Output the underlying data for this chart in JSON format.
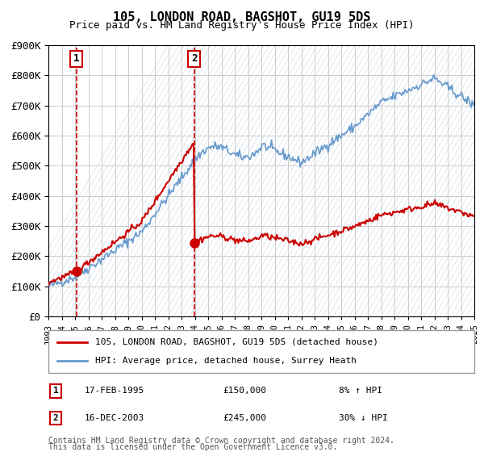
{
  "title": "105, LONDON ROAD, BAGSHOT, GU19 5DS",
  "subtitle": "Price paid vs. HM Land Registry's House Price Index (HPI)",
  "ylim": [
    0,
    900000
  ],
  "yticks": [
    0,
    100000,
    200000,
    300000,
    400000,
    500000,
    600000,
    700000,
    800000,
    900000
  ],
  "ytick_labels": [
    "£0",
    "£100K",
    "£200K",
    "£300K",
    "£400K",
    "£500K",
    "£600K",
    "£700K",
    "£800K",
    "£900K"
  ],
  "sale1_date": 1995.12,
  "sale1_price": 150000,
  "sale1_label": "1",
  "sale1_text": "17-FEB-1995",
  "sale1_price_text": "£150,000",
  "sale1_hpi_text": "8% ↑ HPI",
  "sale2_date": 2003.96,
  "sale2_price": 245000,
  "sale2_label": "2",
  "sale2_text": "16-DEC-2003",
  "sale2_price_text": "£245,000",
  "sale2_hpi_text": "30% ↓ HPI",
  "line1_color": "#cc0000",
  "line2_color": "#6699cc",
  "grid_color": "#cccccc",
  "plot_bg": "#ffffff",
  "sale_marker_color": "#cc0000",
  "vline_color": "#cc0000",
  "legend_line1": "105, LONDON ROAD, BAGSHOT, GU19 5DS (detached house)",
  "legend_line2": "HPI: Average price, detached house, Surrey Heath",
  "footnote1": "Contains HM Land Registry data © Crown copyright and database right 2024.",
  "footnote2": "This data is licensed under the Open Government Licence v3.0.",
  "xstart": 1993,
  "xend": 2025
}
